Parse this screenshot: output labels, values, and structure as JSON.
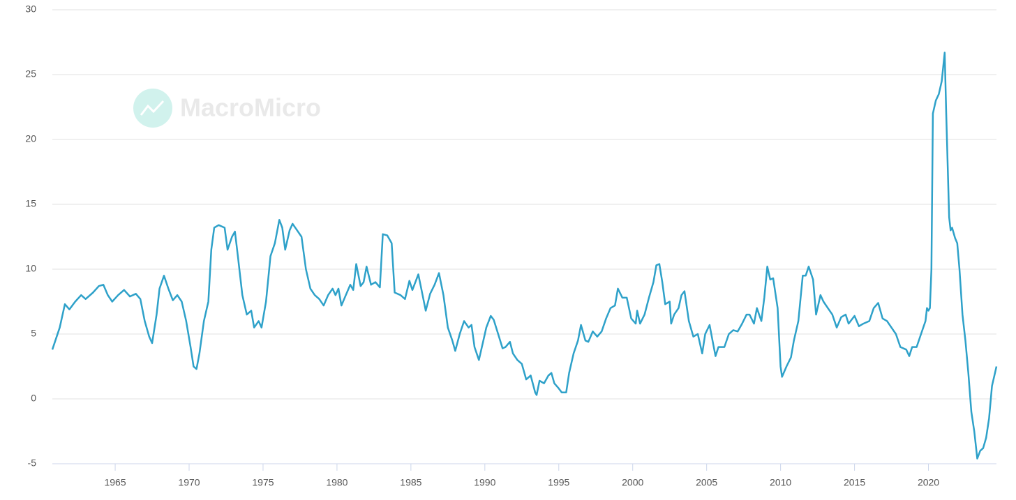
{
  "chart_data": {
    "type": "line",
    "watermark": "MacroMicro",
    "color": "#2ea1c9",
    "grid": true,
    "xlim": [
      1960.75,
      2024.6
    ],
    "xticks": [
      1965,
      1970,
      1975,
      1980,
      1985,
      1990,
      1995,
      2000,
      2005,
      2010,
      2015,
      2020
    ],
    "ylim": [
      -5,
      30
    ],
    "yticks": [
      -5,
      0,
      5,
      10,
      15,
      20,
      25,
      30
    ],
    "x": [
      1960.75,
      1961.25,
      1961.6,
      1961.9,
      1962.3,
      1962.7,
      1963.0,
      1963.5,
      1963.9,
      1964.2,
      1964.5,
      1964.8,
      1965.2,
      1965.6,
      1966.0,
      1966.4,
      1966.7,
      1967.0,
      1967.3,
      1967.5,
      1967.8,
      1968.0,
      1968.3,
      1968.6,
      1968.9,
      1969.2,
      1969.5,
      1969.8,
      1970.1,
      1970.3,
      1970.5,
      1970.7,
      1971.0,
      1971.3,
      1971.5,
      1971.7,
      1972.0,
      1972.4,
      1972.6,
      1972.9,
      1973.1,
      1973.3,
      1973.6,
      1973.9,
      1974.2,
      1974.4,
      1974.7,
      1974.9,
      1975.2,
      1975.5,
      1975.8,
      1976.1,
      1976.3,
      1976.5,
      1976.8,
      1977.0,
      1977.3,
      1977.6,
      1977.9,
      1978.2,
      1978.5,
      1978.8,
      1979.1,
      1979.4,
      1979.7,
      1979.9,
      1980.1,
      1980.3,
      1980.6,
      1980.9,
      1981.1,
      1981.3,
      1981.6,
      1981.8,
      1982.0,
      1982.3,
      1982.6,
      1982.9,
      1983.1,
      1983.4,
      1983.7,
      1983.9,
      1984.3,
      1984.6,
      1984.9,
      1985.1,
      1985.5,
      1985.7,
      1986.0,
      1986.3,
      1986.6,
      1986.9,
      1987.2,
      1987.5,
      1987.8,
      1988.0,
      1988.3,
      1988.6,
      1988.9,
      1989.1,
      1989.3,
      1989.6,
      1989.9,
      1990.1,
      1990.4,
      1990.6,
      1990.9,
      1991.2,
      1991.4,
      1991.7,
      1991.9,
      1992.2,
      1992.5,
      1992.8,
      1993.1,
      1993.4,
      1993.5,
      1993.7,
      1994.0,
      1994.3,
      1994.5,
      1994.7,
      1995.0,
      1995.2,
      1995.5,
      1995.7,
      1996.0,
      1996.3,
      1996.5,
      1996.8,
      1997.0,
      1997.3,
      1997.6,
      1997.9,
      1998.2,
      1998.5,
      1998.8,
      1999.0,
      1999.3,
      1999.6,
      1999.9,
      2000.2,
      2000.3,
      2000.5,
      2000.8,
      2001.1,
      2001.4,
      2001.6,
      2001.8,
      2002.0,
      2002.2,
      2002.5,
      2002.6,
      2002.8,
      2003.1,
      2003.3,
      2003.5,
      2003.8,
      2004.1,
      2004.4,
      2004.7,
      2004.9,
      2005.2,
      2005.4,
      2005.6,
      2005.8,
      2006.2,
      2006.5,
      2006.8,
      2007.1,
      2007.4,
      2007.7,
      2007.9,
      2008.2,
      2008.4,
      2008.7,
      2008.9,
      2009.1,
      2009.3,
      2009.5,
      2009.8,
      2010.0,
      2010.1,
      2010.4,
      2010.7,
      2010.9,
      2011.2,
      2011.5,
      2011.7,
      2011.9,
      2012.2,
      2012.4,
      2012.7,
      2012.9,
      2013.2,
      2013.5,
      2013.8,
      2014.1,
      2014.4,
      2014.6,
      2015.0,
      2015.3,
      2015.6,
      2016.0,
      2016.3,
      2016.6,
      2016.9,
      2017.2,
      2017.5,
      2017.8,
      2018.1,
      2018.5,
      2018.7,
      2018.9,
      2019.2,
      2019.5,
      2019.8,
      2019.9,
      2020.0,
      2020.1,
      2020.2,
      2020.3,
      2020.5,
      2020.7,
      2020.9,
      2021.1,
      2021.2,
      2021.4,
      2021.5,
      2021.6,
      2021.8,
      2021.95,
      2022.1,
      2022.3,
      2022.5,
      2022.7,
      2022.9,
      2023.1,
      2023.3,
      2023.5,
      2023.7,
      2023.9,
      2024.1,
      2024.3,
      2024.5,
      2024.6
    ],
    "values": [
      3.8,
      5.5,
      7.3,
      6.9,
      7.5,
      8.0,
      7.7,
      8.2,
      8.7,
      8.8,
      8.0,
      7.5,
      8.0,
      8.4,
      7.9,
      8.1,
      7.7,
      6.0,
      4.8,
      4.3,
      6.5,
      8.5,
      9.5,
      8.5,
      7.6,
      8.0,
      7.5,
      6.0,
      4.0,
      2.5,
      2.3,
      3.5,
      6.0,
      7.5,
      11.5,
      13.2,
      13.4,
      13.2,
      11.5,
      12.5,
      12.9,
      11.0,
      8.0,
      6.5,
      6.8,
      5.5,
      6.0,
      5.5,
      7.5,
      11.0,
      12.0,
      13.8,
      13.2,
      11.5,
      13.0,
      13.5,
      13.0,
      12.5,
      10.0,
      8.5,
      8.0,
      7.7,
      7.2,
      8.0,
      8.5,
      8.0,
      8.5,
      7.2,
      8.0,
      8.8,
      8.4,
      10.4,
      8.7,
      9.0,
      10.2,
      8.8,
      9.0,
      8.6,
      12.7,
      12.6,
      12.0,
      8.2,
      8.0,
      7.7,
      9.1,
      8.4,
      9.6,
      8.5,
      6.8,
      8.1,
      8.8,
      9.7,
      8.0,
      5.5,
      4.5,
      3.7,
      5.0,
      6.0,
      5.5,
      5.7,
      4.0,
      3.0,
      4.5,
      5.5,
      6.4,
      6.1,
      5.0,
      3.9,
      4.0,
      4.4,
      3.5,
      3.0,
      2.7,
      1.5,
      1.8,
      0.5,
      0.3,
      1.4,
      1.2,
      1.8,
      2.0,
      1.2,
      0.8,
      0.5,
      0.5,
      2.0,
      3.5,
      4.5,
      5.7,
      4.5,
      4.4,
      5.2,
      4.8,
      5.2,
      6.2,
      7.0,
      7.2,
      8.5,
      7.8,
      7.8,
      6.2,
      5.8,
      6.8,
      5.8,
      6.5,
      7.8,
      9.0,
      10.3,
      10.4,
      9.0,
      7.3,
      7.5,
      5.8,
      6.5,
      7.0,
      8.0,
      8.3,
      6.0,
      4.8,
      5.0,
      3.5,
      5.0,
      5.7,
      4.5,
      3.3,
      4.0,
      4.0,
      5.0,
      5.3,
      5.2,
      5.8,
      6.5,
      6.5,
      5.8,
      7.0,
      6.0,
      7.8,
      10.2,
      9.2,
      9.3,
      7.0,
      2.5,
      1.7,
      2.5,
      3.2,
      4.5,
      6.0,
      9.5,
      9.5,
      10.2,
      9.2,
      6.5,
      8.0,
      7.5,
      7.0,
      6.5,
      5.5,
      6.3,
      6.5,
      5.8,
      6.4,
      5.6,
      5.8,
      6.0,
      7.0,
      7.4,
      6.2,
      6.0,
      5.5,
      5.0,
      4.0,
      3.8,
      3.3,
      4.0,
      4.0,
      5.0,
      6.0,
      7.0,
      6.8,
      7.0,
      10.0,
      22.0,
      23.0,
      23.5,
      24.5,
      26.7,
      22.0,
      14.0,
      13.0,
      13.2,
      12.4,
      12.0,
      10.0,
      6.5,
      4.5,
      2.0,
      -1.0,
      -2.5,
      -4.6,
      -4.0,
      -3.8,
      -3.0,
      -1.5,
      1.0,
      2.0,
      2.5
    ]
  }
}
